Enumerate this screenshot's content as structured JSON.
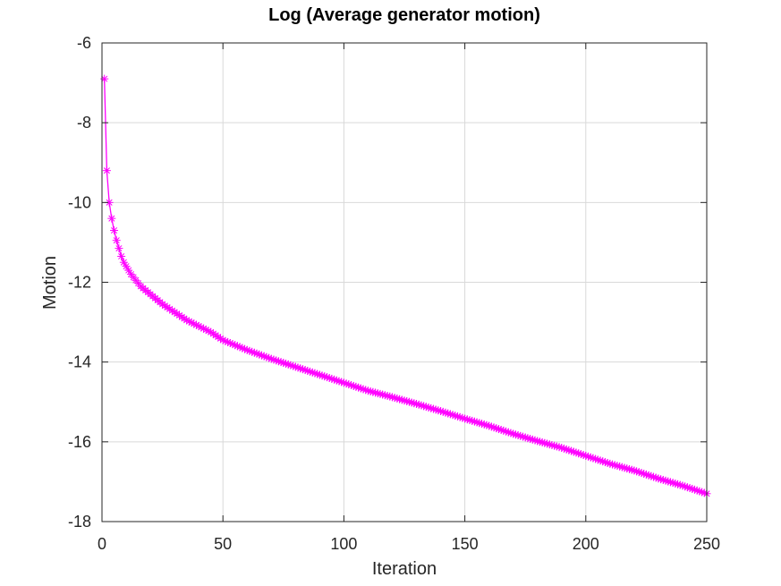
{
  "chart_data": {
    "type": "line",
    "title": "Log (Average generator motion)",
    "xlabel": "Iteration",
    "ylabel": "Motion",
    "xlim": [
      0,
      250
    ],
    "ylim": [
      -18,
      -6
    ],
    "xticks": [
      0,
      50,
      100,
      150,
      200,
      250
    ],
    "yticks": [
      -18,
      -16,
      -14,
      -12,
      -10,
      -8,
      -6
    ],
    "grid": true,
    "marker": "asterisk",
    "series": [
      {
        "color": "#ff00ff",
        "x": [
          1,
          2,
          3,
          4,
          5,
          6,
          7,
          8,
          9,
          10,
          12,
          14,
          16,
          18,
          20,
          25,
          30,
          35,
          40,
          45,
          50,
          60,
          70,
          80,
          90,
          100,
          110,
          120,
          130,
          140,
          150,
          160,
          170,
          180,
          190,
          200,
          210,
          220,
          230,
          240,
          250
        ],
        "y": [
          -6.9,
          -9.2,
          -10.0,
          -10.4,
          -10.7,
          -10.95,
          -11.15,
          -11.35,
          -11.5,
          -11.6,
          -11.8,
          -11.95,
          -12.1,
          -12.2,
          -12.3,
          -12.55,
          -12.75,
          -12.95,
          -13.1,
          -13.25,
          -13.45,
          -13.7,
          -13.92,
          -14.12,
          -14.32,
          -14.52,
          -14.72,
          -14.88,
          -15.05,
          -15.23,
          -15.42,
          -15.6,
          -15.8,
          -15.98,
          -16.15,
          -16.35,
          -16.55,
          -16.72,
          -16.92,
          -17.1,
          -17.3
        ]
      }
    ]
  }
}
